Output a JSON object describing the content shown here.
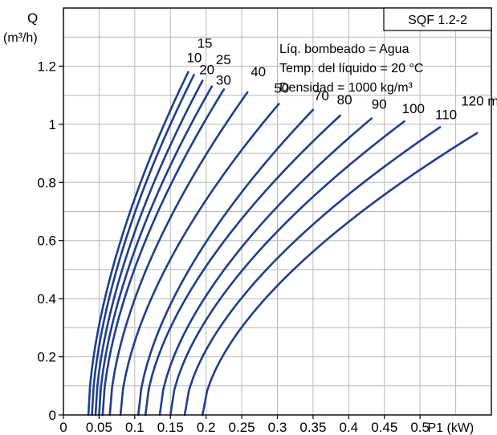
{
  "chart_data": {
    "type": "line",
    "title": "SQF 1.2-2",
    "info_lines": [
      "Líq. bombeado = Agua",
      "Temp. del líquido = 20 °C",
      "Densidad = 1000 kg/m³"
    ],
    "ylabel": "Q",
    "yunit": "(m³/h)",
    "xlabel": "P1 (kW)",
    "xlim": [
      0,
      0.6
    ],
    "ylim": [
      0,
      1.4
    ],
    "x_ticks": [
      "0",
      "0.05",
      "0.1",
      "0.15",
      "0.2",
      "0.25",
      "0.3",
      "0.35",
      "0.4",
      "0.45",
      "0.5"
    ],
    "x_tick_values": [
      0,
      0.05,
      0.1,
      0.15,
      0.2,
      0.25,
      0.3,
      0.35,
      0.4,
      0.45,
      0.5
    ],
    "y_ticks": [
      "0",
      "0.2",
      "0.4",
      "0.6",
      "0.8",
      "1",
      "1.2"
    ],
    "y_tick_values": [
      0,
      0.2,
      0.4,
      0.6,
      0.8,
      1.0,
      1.2
    ],
    "grid": true,
    "line_color": "#1f3f8c",
    "series": [
      {
        "name": "10",
        "x0": 0.035,
        "x1": 0.175,
        "y1": 1.18
      },
      {
        "name": "15",
        "x0": 0.04,
        "x1": 0.183,
        "y1": 1.17
      },
      {
        "name": "20",
        "x0": 0.045,
        "x1": 0.195,
        "y1": 1.15
      },
      {
        "name": "25",
        "x0": 0.05,
        "x1": 0.208,
        "y1": 1.13
      },
      {
        "name": "30",
        "x0": 0.055,
        "x1": 0.225,
        "y1": 1.12
      },
      {
        "name": "40",
        "x0": 0.065,
        "x1": 0.258,
        "y1": 1.11
      },
      {
        "name": "50",
        "x0": 0.08,
        "x1": 0.302,
        "y1": 1.07
      },
      {
        "name": "70",
        "x0": 0.105,
        "x1": 0.35,
        "y1": 1.05
      },
      {
        "name": "80",
        "x0": 0.115,
        "x1": 0.388,
        "y1": 1.03
      },
      {
        "name": "90",
        "x0": 0.135,
        "x1": 0.432,
        "y1": 1.02
      },
      {
        "name": "100",
        "x0": 0.15,
        "x1": 0.478,
        "y1": 1.01
      },
      {
        "name": "110",
        "x0": 0.17,
        "x1": 0.528,
        "y1": 0.99
      },
      {
        "name": "120 m",
        "x0": 0.195,
        "x1": 0.58,
        "y1": 0.97
      }
    ]
  }
}
